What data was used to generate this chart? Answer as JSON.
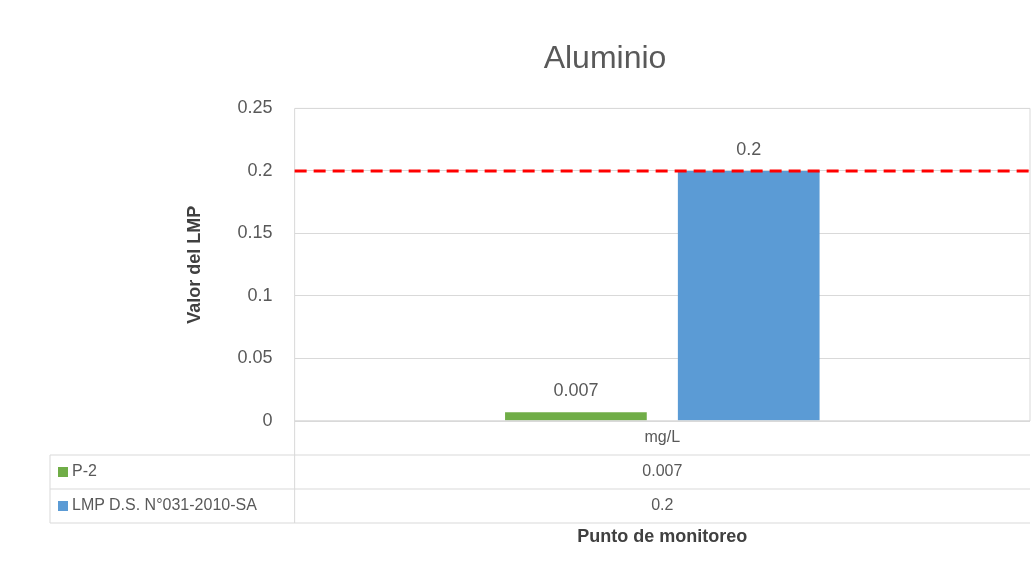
{
  "chart_data": {
    "type": "bar",
    "title": "Aluminio",
    "ylabel": "Valor del LMP",
    "categories": [
      "mg/L"
    ],
    "series": [
      {
        "name": "P-2",
        "color": "#70ad47",
        "values": [
          0.007
        ]
      },
      {
        "name": "LMP D.S. N°031-2010-SA",
        "color": "#5b9bd5",
        "values": [
          0.2
        ]
      }
    ],
    "ylim": [
      0,
      0.25
    ],
    "yticks": [
      0,
      0.05,
      0.1,
      0.15,
      0.2,
      0.25
    ],
    "grid": "y",
    "legend": "bottom",
    "data_labels": true,
    "annotations": [
      "0.007",
      "0.2",
      "Punto de monitoreo"
    ],
    "ref_lines": [
      {
        "axis": "y",
        "value": 0.2,
        "color": "#ff0000",
        "line_style": "dashed"
      }
    ]
  }
}
